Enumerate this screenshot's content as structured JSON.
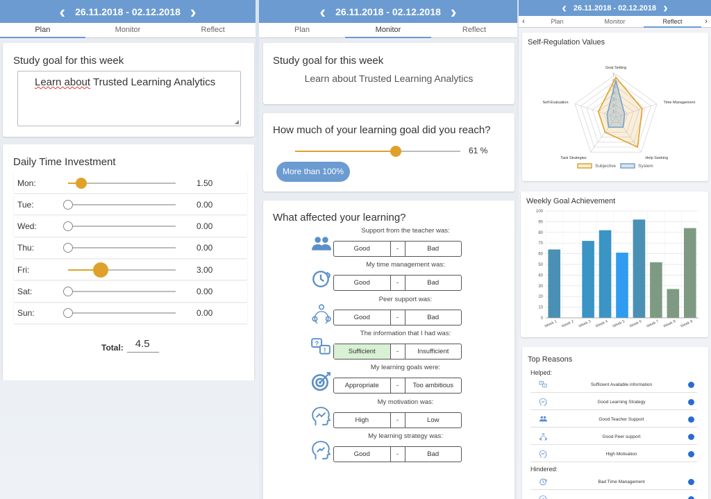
{
  "colors": {
    "accent": "#6b9bd1",
    "slider": "#e0a12a",
    "subjective": "#e0a12a",
    "system": "#7aa1c7"
  },
  "panels": [
    {
      "date_range": "26.11.2018 - 02.12.2018",
      "tabs": [
        "Plan",
        "Monitor",
        "Reflect"
      ],
      "active_tab": "Plan"
    },
    {
      "date_range": "26.11.2018 - 02.12.2018",
      "tabs": [
        "Plan",
        "Monitor",
        "Reflect"
      ],
      "active_tab": "Monitor"
    },
    {
      "date_range": "26.11.2018 - 02.12.2018",
      "tabs": [
        "Plan",
        "Monitor",
        "Reflect"
      ],
      "active_tab": "Reflect"
    }
  ],
  "arrows": {
    "prev": "‹",
    "next": "›",
    "tab_prev": "‹",
    "tab_next": "›"
  },
  "plan": {
    "goal_title": "Study goal for this week",
    "goal_text_1": "Learn about",
    "goal_text_2": "Trusted Learning Analytics",
    "time_title": "Daily Time Investment",
    "days": [
      {
        "label": "Mon:",
        "value": "1.50",
        "level": 0.125
      },
      {
        "label": "Tue:",
        "value": "0.00",
        "level": 0
      },
      {
        "label": "Wed:",
        "value": "0.00",
        "level": 0
      },
      {
        "label": "Thu:",
        "value": "0.00",
        "level": 0
      },
      {
        "label": "Fri:",
        "value": "3.00",
        "level": 0.3
      },
      {
        "label": "Sat:",
        "value": "0.00",
        "level": 0
      },
      {
        "label": "Sun:",
        "value": "0.00",
        "level": 0
      }
    ],
    "total_label": "Total:",
    "total_value": "4.5"
  },
  "monitor": {
    "goal_title": "Study goal for this week",
    "goal_text": "Learn about Trusted Learning Analytics",
    "reach_title": "How much of your learning goal did you reach?",
    "reach_pct": "61 %",
    "reach_level": 0.61,
    "more_button": "More than 100%",
    "affect_title": "What affected your learning?",
    "questions": [
      {
        "label": "Support from the teacher was:",
        "left": "Good",
        "mid": "-",
        "right": "Bad",
        "icon": "people-icon"
      },
      {
        "label": "My time management was:",
        "left": "Good",
        "mid": "-",
        "right": "Bad",
        "icon": "clock-icon"
      },
      {
        "label": "Peer support was:",
        "left": "Good",
        "mid": "-",
        "right": "Bad",
        "icon": "peer-network-icon"
      },
      {
        "label": "The information that I had was:",
        "left": "Sufficient",
        "mid": "-",
        "right": "Insufficient",
        "icon": "info-bubbles-icon",
        "selected": "left"
      },
      {
        "label": "My learning goals were:",
        "left": "Appropriate",
        "mid": "-",
        "right": "Too ambitious",
        "icon": "target-icon"
      },
      {
        "label": "My motivation was:",
        "left": "High",
        "mid": "-",
        "right": "Low",
        "icon": "head-growth-icon"
      },
      {
        "label": "My learning strategy was:",
        "left": "Good",
        "mid": "-",
        "right": "Bad",
        "icon": "head-strategy-icon"
      }
    ]
  },
  "reflect": {
    "srv_title": "Self-Regulation Values",
    "wga_title": "Weekly Goal Achievement",
    "reasons_title": "Top Reasons",
    "helped_label": "Helped:",
    "hindered_label": "Hindered:",
    "helped": [
      {
        "text": "Sufficient Available information",
        "icon": "info-bubbles-icon"
      },
      {
        "text": "Good Learning Strategy",
        "icon": "head-strategy-icon"
      },
      {
        "text": "Good Teacher Support",
        "icon": "people-icon"
      },
      {
        "text": "Good Peer support",
        "icon": "peer-network-icon"
      },
      {
        "text": "High Motivation",
        "icon": "head-growth-icon"
      }
    ],
    "hindered": [
      {
        "text": "Bad Time Management",
        "icon": "clock-icon"
      },
      {
        "text": "",
        "icon": "head-strategy-icon"
      }
    ]
  },
  "chart_data": [
    {
      "type": "radar",
      "title": "Self-Regulation Values",
      "axes": [
        "Goal Setting",
        "Time Management",
        "Help Seeking",
        "Task Strategies",
        "Self-Evaluation"
      ],
      "rlim": [
        0,
        7
      ],
      "ticks": [
        "1",
        "2",
        "3",
        "4",
        "5",
        "6",
        "7"
      ],
      "series": [
        {
          "name": "Subjective",
          "values": [
            6.5,
            4.5,
            6,
            3,
            3
          ]
        },
        {
          "name": "System",
          "values": [
            6,
            1.5,
            2,
            2,
            1.5
          ]
        }
      ],
      "legend": "bottom"
    },
    {
      "type": "bar",
      "title": "Weekly Goal Achievement",
      "categories": [
        "Week 1",
        "Week 2",
        "Week 3",
        "Week 4",
        "Week 5",
        "Week 6",
        "Week 7",
        "Week 8",
        "Week 9"
      ],
      "values": [
        64,
        0,
        72,
        82,
        61,
        92,
        52,
        27,
        84
      ],
      "colors": [
        "#4a90b5",
        "#4a90b5",
        "#3a94c6",
        "#3a94c6",
        "#2f9cf2",
        "#4a90b5",
        "#7f9a82",
        "#7f9a82",
        "#7f9a82"
      ],
      "ylim": [
        0,
        100
      ],
      "yticks": [
        0,
        10,
        20,
        30,
        40,
        50,
        60,
        70,
        80,
        90,
        100
      ],
      "grid": true
    }
  ]
}
